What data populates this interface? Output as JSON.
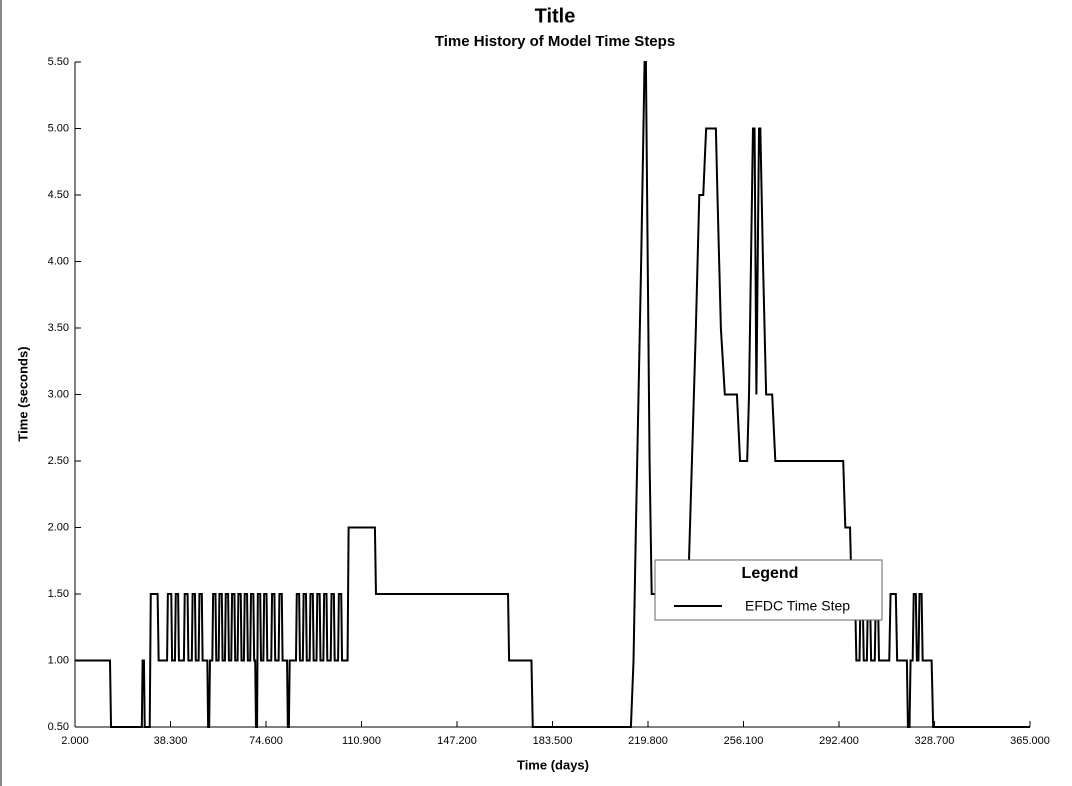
{
  "chart_data": {
    "type": "line",
    "title": "Title",
    "subtitle": "Time History of Model Time Steps",
    "x_label": "Time (days)",
    "y_label": "Time (seconds)",
    "legend_title": "Legend",
    "xlim": [
      2,
      365
    ],
    "ylim": [
      0.5,
      5.5
    ],
    "xticks": [
      {
        "value": 2,
        "label": "2.000"
      },
      {
        "value": 38.3,
        "label": "38.300"
      },
      {
        "value": 74.6,
        "label": "74.600"
      },
      {
        "value": 110.9,
        "label": "110.900"
      },
      {
        "value": 147.2,
        "label": "147.200"
      },
      {
        "value": 183.5,
        "label": "183.500"
      },
      {
        "value": 219.8,
        "label": "219.800"
      },
      {
        "value": 256.1,
        "label": "256.100"
      },
      {
        "value": 292.4,
        "label": "292.400"
      },
      {
        "value": 328.7,
        "label": "328.700"
      },
      {
        "value": 365,
        "label": "365.000"
      }
    ],
    "yticks": [
      {
        "value": 0.5,
        "label": "0.50"
      },
      {
        "value": 1,
        "label": "1.00"
      },
      {
        "value": 1.5,
        "label": "1.50"
      },
      {
        "value": 2,
        "label": "2.00"
      },
      {
        "value": 2.5,
        "label": "2.50"
      },
      {
        "value": 3,
        "label": "3.00"
      },
      {
        "value": 3.5,
        "label": "3.50"
      },
      {
        "value": 4,
        "label": "4.00"
      },
      {
        "value": 4.5,
        "label": "4.50"
      },
      {
        "value": 5,
        "label": "5.00"
      },
      {
        "value": 5.5,
        "label": "5.50"
      }
    ],
    "x": [
      2,
      15.3,
      15.7,
      27.4,
      27.7,
      28.2,
      28.5,
      30.4,
      30.8,
      33.4,
      33.8,
      37.0,
      37.3,
      38.6,
      38.9,
      40.0,
      40.3,
      41.2,
      41.5,
      43.4,
      43.7,
      44.8,
      45.1,
      46.4,
      46.7,
      47.6,
      47.9,
      49.0,
      49.3,
      50.2,
      50.5,
      52.3,
      52.6,
      53.0,
      53.3,
      54.2,
      54.5,
      55.4,
      55.7,
      56.6,
      56.9,
      57.8,
      58.1,
      59.0,
      59.3,
      60.2,
      60.5,
      61.4,
      61.7,
      62.6,
      62.9,
      63.8,
      64.1,
      65.0,
      65.3,
      66.2,
      66.5,
      67.4,
      67.7,
      68.6,
      68.9,
      69.8,
      70.1,
      70.5,
      70.8,
      71.2,
      71.5,
      72.4,
      72.7,
      73.6,
      73.9,
      74.8,
      75.1,
      76.6,
      76.9,
      77.8,
      78.1,
      79.4,
      79.7,
      80.6,
      80.9,
      82.6,
      82.9,
      83.3,
      83.6,
      86.0,
      86.3,
      87.2,
      87.5,
      88.6,
      88.9,
      89.8,
      90.1,
      91.2,
      91.5,
      92.4,
      92.7,
      93.8,
      94.1,
      95.0,
      95.3,
      96.4,
      96.7,
      97.6,
      97.9,
      99.2,
      99.5,
      100.4,
      100.7,
      102.0,
      102.3,
      103.2,
      103.5,
      105.6,
      106.0,
      116.0,
      116.4,
      166.6,
      167.0,
      175.5,
      176.0,
      213.3,
      214.3,
      215.2,
      216.2,
      217.2,
      218.5,
      219.0,
      219.6,
      220.4,
      221.2,
      235.0,
      236.5,
      238.0,
      239.3,
      240.8,
      241.9,
      245.6,
      246.2,
      247.5,
      249.0,
      253.6,
      254.8,
      257.5,
      258.2,
      259.7,
      260.3,
      261.0,
      262.0,
      262.5,
      263.5,
      264.7,
      267.0,
      268.2,
      294.0,
      294.8,
      296.6,
      297.2,
      298.5,
      299.0,
      300.2,
      300.6,
      301.4,
      301.8,
      303.0,
      303.4,
      304.2,
      304.6,
      306.0,
      306.4,
      307.2,
      307.6,
      311.5,
      312.0,
      314.0,
      314.5,
      318.2,
      318.6,
      319.2,
      319.6,
      320.4,
      320.8,
      321.6,
      322.0,
      322.6,
      323.0,
      323.8,
      324.2,
      327.6,
      328.2,
      365
    ],
    "series": [
      {
        "name": "EFDC Time Step",
        "color": "#000000",
        "values": [
          1,
          1,
          0.5,
          0.5,
          1,
          1,
          0.5,
          0.5,
          1.5,
          1.5,
          1,
          1,
          1.5,
          1.5,
          1,
          1,
          1.5,
          1.5,
          1,
          1,
          1.5,
          1.5,
          1,
          1,
          1.5,
          1.5,
          1,
          1,
          1.5,
          1.5,
          1,
          1,
          0.5,
          0.5,
          1,
          1,
          1.5,
          1.5,
          1,
          1,
          1.5,
          1.5,
          1,
          1,
          1.5,
          1.5,
          1,
          1,
          1.5,
          1.5,
          1,
          1,
          1.5,
          1.5,
          1,
          1,
          1.5,
          1.5,
          1,
          1,
          1.5,
          1.5,
          1,
          1,
          0.5,
          0.5,
          1.5,
          1.5,
          1,
          1,
          1.5,
          1.5,
          1,
          1,
          1.5,
          1.5,
          1,
          1,
          1.5,
          1.5,
          1,
          1,
          0.5,
          0.5,
          1,
          1,
          1.5,
          1.5,
          1,
          1,
          1.5,
          1.5,
          1,
          1,
          1.5,
          1.5,
          1,
          1,
          1.5,
          1.5,
          1,
          1,
          1.5,
          1.5,
          1,
          1,
          1.5,
          1.5,
          1,
          1,
          1.5,
          1.5,
          1,
          1,
          2,
          2,
          1.5,
          1.5,
          1,
          1,
          0.5,
          0.5,
          1,
          2,
          3,
          4,
          5.5,
          5.5,
          4.2,
          2.5,
          1.5,
          1.5,
          2.5,
          3.5,
          4.5,
          4.5,
          5,
          5,
          4.5,
          3.5,
          3,
          3,
          2.5,
          2.5,
          3,
          5,
          5,
          3,
          5,
          5,
          4,
          3,
          3,
          2.5,
          2.5,
          2,
          2,
          1.5,
          1.5,
          1,
          1,
          1.5,
          1.5,
          1,
          1,
          1.5,
          1.5,
          1,
          1,
          1.5,
          1.5,
          1,
          1,
          1.5,
          1.5,
          1,
          1,
          0.5,
          0.5,
          1,
          1,
          1.5,
          1.5,
          1,
          1,
          1.5,
          1.5,
          1,
          1,
          0.5,
          0.5
        ]
      }
    ],
    "grid": false
  }
}
